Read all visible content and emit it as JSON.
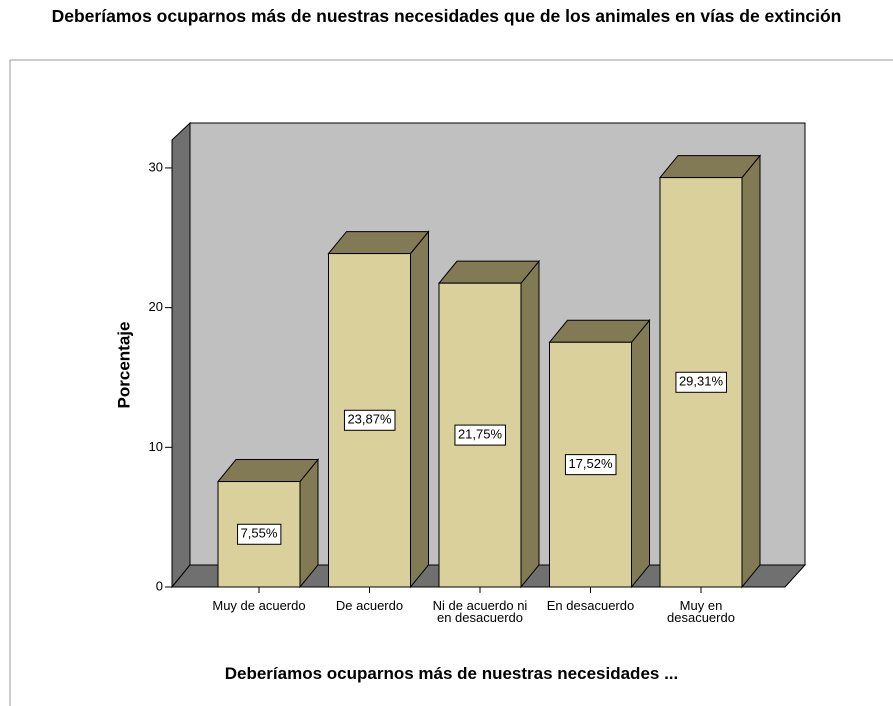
{
  "chart_data": {
    "type": "bar3d",
    "title": "Deberíamos ocuparnos más de nuestras necesidades que de los animales en vías de extinción",
    "x_label": "Deberíamos ocuparnos más de nuestras necesidades ...",
    "y_label": "Porcentaje",
    "categories": [
      "Muy de acuerdo",
      "De acuerdo",
      "Ni de acuerdo ni en desacuerdo",
      "En desacuerdo",
      "Muy en desacuerdo"
    ],
    "values": [
      7.55,
      23.87,
      21.75,
      17.52,
      29.31
    ],
    "value_labels": [
      "7,55%",
      "23,87%",
      "21,75%",
      "17,52%",
      "29,31%"
    ],
    "color": "#d9d09b",
    "ylim": [
      0,
      32
    ],
    "yticks": [
      0,
      10,
      20,
      30
    ]
  }
}
